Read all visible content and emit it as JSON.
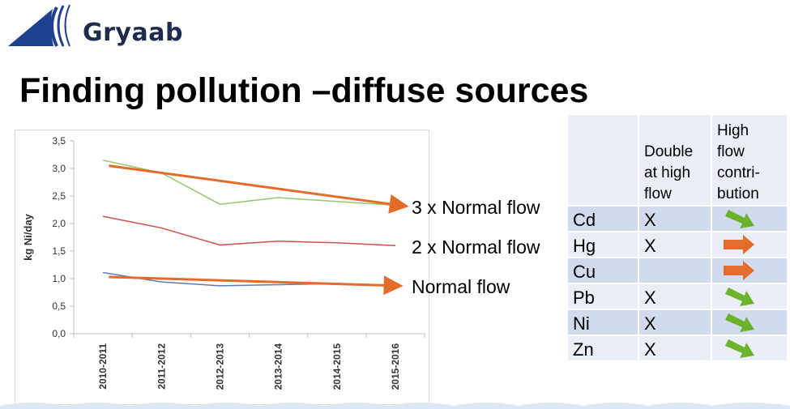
{
  "logo": {
    "text": "Gryaab"
  },
  "slide": {
    "title": "Finding pollution –diffuse sources"
  },
  "chart_data": {
    "type": "line",
    "ylabel": "kg Ni/day",
    "xlabel": "",
    "categories": [
      "2010-2011",
      "2011-2012",
      "2012-2013",
      "2013-2014",
      "2014-2015",
      "2015-2016"
    ],
    "ylim": [
      0,
      3.5
    ],
    "yticks": [
      "0,0",
      "0,5",
      "1,0",
      "1,5",
      "2,0",
      "2,5",
      "3,0",
      "3,5"
    ],
    "series": [
      {
        "color": "#92c76b",
        "values": [
          3.15,
          2.92,
          2.35,
          2.47,
          2.4,
          2.33
        ]
      },
      {
        "color": "#c9504b",
        "values": [
          2.13,
          1.92,
          1.61,
          1.68,
          1.65,
          1.6
        ]
      },
      {
        "color": "#5b7bb5",
        "values": [
          1.11,
          0.94,
          0.87,
          0.89,
          0.91,
          0.88
        ]
      }
    ],
    "trends": [
      {
        "color": "#e46c2a",
        "from": [
          0.1,
          3.05
        ],
        "to": [
          5.15,
          2.32
        ]
      },
      {
        "color": "#e46c2a",
        "from": [
          0.1,
          1.03
        ],
        "to": [
          5.05,
          0.87
        ]
      }
    ],
    "grid": false
  },
  "annotations": [
    "3 x Normal flow",
    "2 x Normal flow",
    "Normal flow"
  ],
  "table": {
    "headers": [
      "",
      "Double at high flow",
      "High flow contri-bution"
    ],
    "rows": [
      {
        "metal": "Cd",
        "double": "X",
        "arrow": "down-right",
        "arrow_color": "#6ab42d"
      },
      {
        "metal": "Hg",
        "double": "X",
        "arrow": "right",
        "arrow_color": "#e46c2a"
      },
      {
        "metal": "Cu",
        "double": "",
        "arrow": "right",
        "arrow_color": "#e46c2a"
      },
      {
        "metal": "Pb",
        "double": "X",
        "arrow": "down-right",
        "arrow_color": "#6ab42d"
      },
      {
        "metal": "Ni",
        "double": "X",
        "arrow": "down-right",
        "arrow_color": "#6ab42d"
      },
      {
        "metal": "Zn",
        "double": "X",
        "arrow": "down-right",
        "arrow_color": "#6ab42d"
      }
    ]
  },
  "colors": {
    "band_light": "#e9eef7",
    "band_dark": "#d2dbee",
    "logo_blue": "#1f3f8f"
  }
}
